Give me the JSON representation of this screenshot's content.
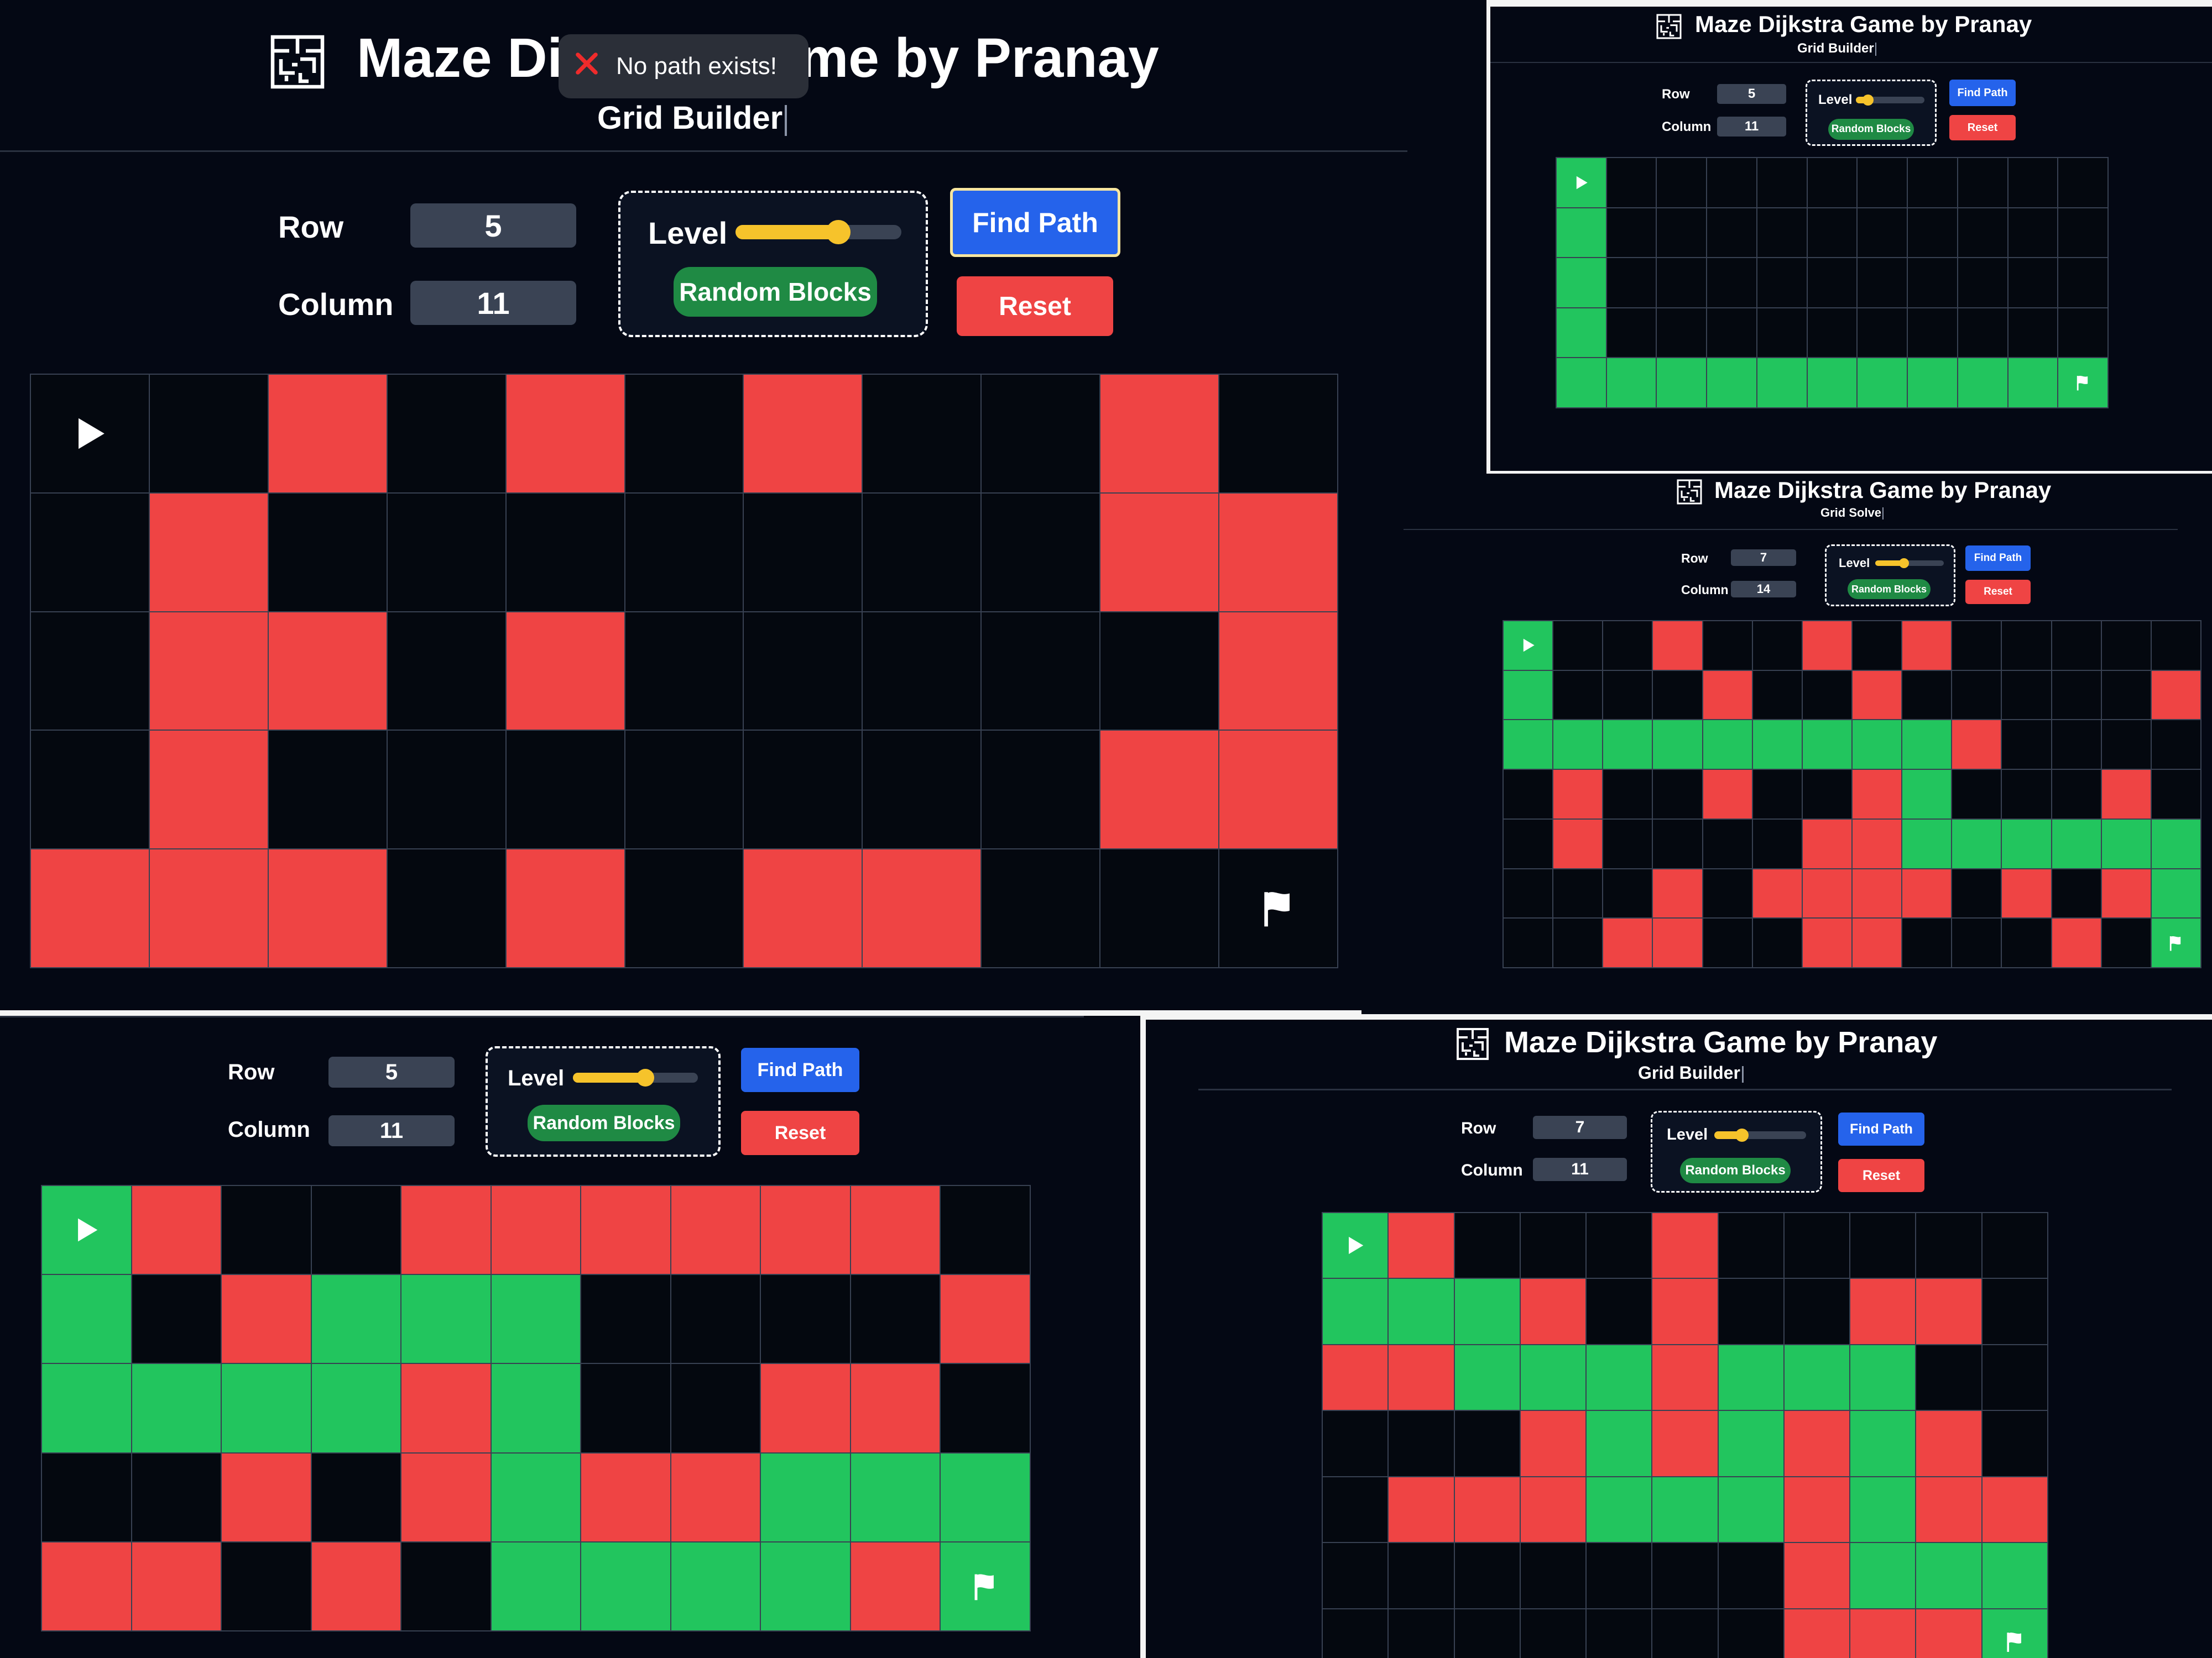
{
  "app_title": "Maze Dijkstra Game by Pranay",
  "labels": {
    "row": "Row",
    "column": "Column",
    "level": "Level",
    "random_blocks": "Random Blocks",
    "find_path": "Find Path",
    "reset": "Reset"
  },
  "toast": {
    "message": "No path exists!"
  },
  "icons": {
    "logo": "maze-logo-icon",
    "start": "play-icon",
    "end": "flag-icon",
    "error": "x-icon"
  },
  "colors": {
    "wall": "#ef4444",
    "path": "#22c55e",
    "empty": "#04080f",
    "find_path": "#2563eb",
    "reset": "#ef4444",
    "random_blocks": "#1f8a44",
    "slider": "#f6c32b"
  },
  "panels": [
    {
      "id": "main",
      "subtitle": "Grid Builder",
      "rows_value": "5",
      "cols_value": "11",
      "level": 0.62,
      "grid": [
        "SEWEWEWEEWE",
        "EWEEEEEEEWW",
        "EWWEWEEEEEW",
        "EWEEEEEEEWW",
        "WWWEWEWWEEF"
      ]
    },
    {
      "id": "top-right",
      "subtitle": "Grid Builder",
      "rows_value": "5",
      "cols_value": "11",
      "level": 0.18,
      "grid": [
        "SEEEEEEEEEE",
        "PEEEEEEEEEE",
        "PEEEEEEEEEE",
        "PEEEEEEEEEE",
        "PPPPPPPPPPF"
      ]
    },
    {
      "id": "middle-right",
      "subtitle": "Grid Solve",
      "rows_value": "7",
      "cols_value": "14",
      "level": 0.42,
      "grid": [
        "SEEWEEWEWEEEEE",
        "PEEEWEEWEEEEEW",
        "PPPPPPPPPWEEEE",
        "EWEEWEEWPEEEWE",
        "EWEEEEWWPPPPPP",
        "EEEWEWWWWEWEWP",
        "EEWWEEWWEEEWEF"
      ]
    },
    {
      "id": "bottom-left",
      "rows_value": "5",
      "cols_value": "11",
      "level": 0.58,
      "grid": [
        "SWEEWWWWWWE",
        "PEWPPPEEEEW",
        "PPPPWPEEWWE",
        "EEWEWPWWPPP",
        "WWEWEPPPPWF"
      ]
    },
    {
      "id": "bottom-right",
      "subtitle": "Grid Builder",
      "rows_value": "7",
      "cols_value": "11",
      "level": 0.3,
      "grid": [
        "SWEEEWEEEEE",
        "PPPWEWEEWWE",
        "WWPPPWPPPEE",
        "EEEWPWPWPWE",
        "EWWWPPPWPWW",
        "EEEEEEEWPPP",
        "EEEEEEEWWWF"
      ]
    }
  ]
}
